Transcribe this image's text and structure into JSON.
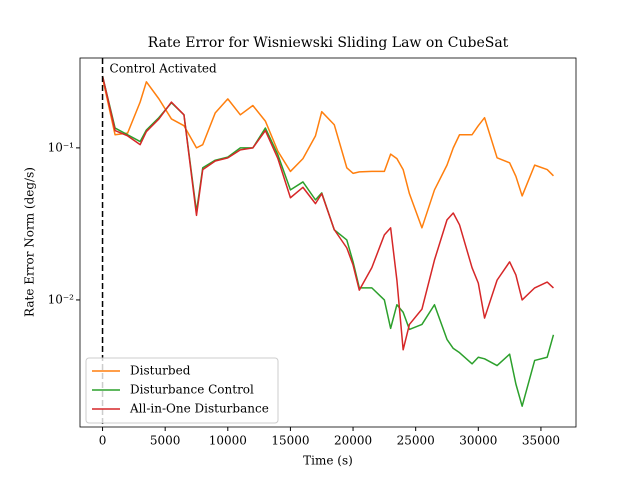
{
  "chart_data": {
    "type": "line",
    "title": "Rate Error for Wisniewski Sliding Law on CubeSat",
    "xlabel": "Time (s)",
    "ylabel": "Rate Error Norm (deg/s)",
    "x": [
      0,
      1000,
      2000,
      3000,
      3500,
      4500,
      5500,
      6500,
      7500,
      8000,
      9000,
      10000,
      11000,
      12000,
      13000,
      14000,
      15000,
      16000,
      17000,
      17500,
      18500,
      19500,
      20000,
      20500,
      21500,
      22500,
      23000,
      23500,
      24000,
      24500,
      25500,
      26500,
      27500,
      28000,
      28500,
      29500,
      30000,
      30500,
      31500,
      32500,
      33000,
      33500,
      34500,
      35500,
      36000
    ],
    "series": [
      {
        "name": "Disturbed",
        "color": "#ff7f0e",
        "values": [
          0.288,
          0.122,
          0.125,
          0.2,
          0.272,
          0.21,
          0.155,
          0.14,
          0.1,
          0.105,
          0.17,
          0.21,
          0.165,
          0.19,
          0.15,
          0.095,
          0.07,
          0.085,
          0.12,
          0.173,
          0.142,
          0.074,
          0.068,
          0.0695,
          0.07,
          0.07,
          0.091,
          0.085,
          0.072,
          0.05,
          0.0298,
          0.0529,
          0.077,
          0.1,
          0.122,
          0.122,
          0.14,
          0.158,
          0.086,
          0.0797,
          0.065,
          0.0483,
          0.077,
          0.072,
          0.0655
        ]
      },
      {
        "name": "Disturbance Control",
        "color": "#2ca02c",
        "values": [
          0.297,
          0.135,
          0.122,
          0.11,
          0.131,
          0.158,
          0.198,
          0.165,
          0.038,
          0.074,
          0.083,
          0.087,
          0.1,
          0.1,
          0.135,
          0.09,
          0.0529,
          0.0597,
          0.0455,
          0.0506,
          0.0289,
          0.0248,
          0.0178,
          0.012,
          0.012,
          0.01,
          0.0065,
          0.0093,
          0.0083,
          0.0064,
          0.0069,
          0.0093,
          0.0055,
          0.0048,
          0.0045,
          0.0038,
          0.0042,
          0.0041,
          0.0037,
          0.0044,
          0.0028,
          0.002,
          0.004,
          0.0042,
          0.0059
        ]
      },
      {
        "name": "All-in-One Disturbance",
        "color": "#d62728",
        "values": [
          0.297,
          0.13,
          0.12,
          0.105,
          0.128,
          0.155,
          0.2,
          0.165,
          0.036,
          0.072,
          0.082,
          0.086,
          0.097,
          0.1,
          0.13,
          0.085,
          0.047,
          0.055,
          0.043,
          0.05,
          0.029,
          0.022,
          0.017,
          0.0116,
          0.0163,
          0.0268,
          0.0298,
          0.0135,
          0.0047,
          0.0069,
          0.0087,
          0.0183,
          0.0336,
          0.0373,
          0.0312,
          0.0163,
          0.0129,
          0.0076,
          0.0135,
          0.0178,
          0.0146,
          0.01,
          0.012,
          0.0131,
          0.012
        ]
      }
    ],
    "vlines": [
      {
        "x": 0,
        "label": "Control Activated"
      }
    ],
    "xlim": [
      -1800,
      37800
    ],
    "xticks": [
      0,
      5000,
      10000,
      15000,
      20000,
      25000,
      30000,
      35000
    ],
    "ylim": [
      0.00146,
      0.39
    ],
    "ylog": true,
    "yticks": [
      {
        "value": 0.1,
        "label": "10⁻¹"
      },
      {
        "value": 0.01,
        "label": "10⁻²"
      }
    ],
    "legend": "lower left"
  }
}
